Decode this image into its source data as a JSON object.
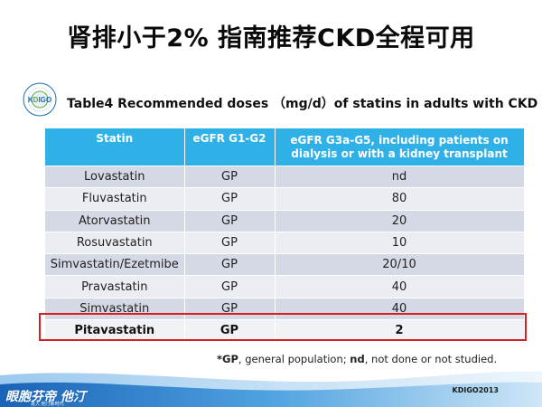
{
  "slide": {
    "title": "肾排小于2% 指南推荐CKD全程可用",
    "subtitle": "Table4 Recommended doses （mg/d）of statins in adults with CKD"
  },
  "logo": {
    "text": "KDIGO",
    "ring_text": "KIDNEY DISEASE · IMPROVING GLOBAL OUTCOMES",
    "colors": {
      "primary": "#1c6fb8",
      "accent": "#5bb038"
    }
  },
  "table": {
    "headers": [
      "Statin",
      "eGFR G1-G2",
      "eGFR G3a-G5, including patients on dialysis or with a kidney transplant"
    ],
    "rows": [
      {
        "statin": "Lovastatin",
        "g1g2": "GP",
        "g3g5": "nd"
      },
      {
        "statin": "Fluvastatin",
        "g1g2": "GP",
        "g3g5": "80"
      },
      {
        "statin": "Atorvastatin",
        "g1g2": "GP",
        "g3g5": "20"
      },
      {
        "statin": "Rosuvastatin",
        "g1g2": "GP",
        "g3g5": "10"
      },
      {
        "statin": "Simvastatin/Ezetmibe",
        "g1g2": "GP",
        "g3g5": "20/10"
      },
      {
        "statin": "Pravastatin",
        "g1g2": "GP",
        "g3g5": "40"
      },
      {
        "statin": "Simvastatin",
        "g1g2": "GP",
        "g3g5": "40"
      },
      {
        "statin": "Pitavastatin",
        "g1g2": "GP",
        "g3g5": "2"
      }
    ],
    "colors": {
      "header": "#2fb1e8",
      "row_dark": "#d5d9e5",
      "row_light": "#ebedf3",
      "highlight_border": "#d42020"
    }
  },
  "footnote": {
    "gp_abbr": "*GP",
    "gp_text": ", general population; ",
    "nd_abbr": "nd",
    "nd_text": ", not done or not studied."
  },
  "footer": {
    "source": "KDIGO2013",
    "brand": "眼胞芬帝 他汀 ",
    "brand_sub": "进入 他汀新时代"
  }
}
